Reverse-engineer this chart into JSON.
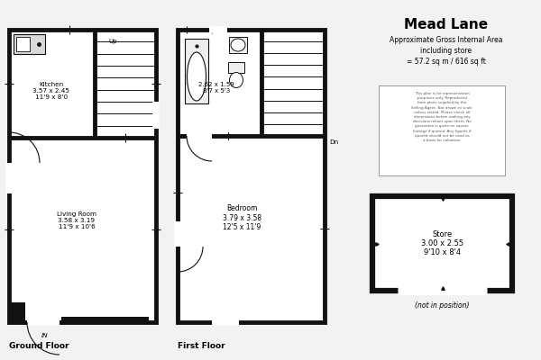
{
  "title": "Mead Lane",
  "subtitle_line1": "Approximate Gross Internal Area",
  "subtitle_line2": "including store",
  "subtitle_line3": "= 57.2 sq m / 616 sq ft",
  "disclaimer": "This plan is for representation\npurposes only. Reproduced\nfrom plans supplied by the\nSelling Agent. Not drawn to scale\nunless stated. Please check all\ndimensions before making any\ndecisions reliant upon them. No\nguarantee is given on square\nfootage if quoted. Any figures if\nquoted should not be used as\na basis for valuation.",
  "ground_floor_label": "Ground Floor",
  "first_floor_label": "First Floor",
  "kitchen_label": "Kitchen\n3.57 x 2.45\n11'9 x 8'0",
  "living_room_label": "Living Room\n3.58 x 3.19\n11'9 x 10'6",
  "bathroom_label": "2.62 x 1.59\n8'7 x 5'3",
  "bedroom_label": "Bedroom\n3.79 x 3.58\n12'5 x 11'9",
  "store_label": "Store\n3.00 x 2.55\n9'10 x 8'4",
  "store_note": "(not in position)",
  "up_label": "Up",
  "dn_label": "Dn",
  "in_label": "IN",
  "bg_color": "#f2f2f2",
  "wall_color": "#111111",
  "floor_color": "#ffffff"
}
